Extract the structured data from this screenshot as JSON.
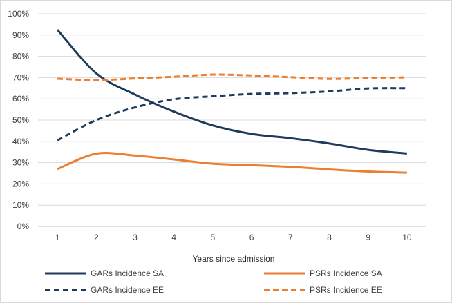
{
  "chart_data": {
    "type": "line",
    "title": "",
    "xlabel": "Years since admission",
    "ylabel": "",
    "x": [
      1,
      2,
      3,
      4,
      5,
      6,
      7,
      8,
      9,
      10
    ],
    "ylim": [
      0,
      100
    ],
    "ytick_values": [
      0,
      10,
      20,
      30,
      40,
      50,
      60,
      70,
      80,
      90,
      100
    ],
    "ytick_labels": [
      "0%",
      "10%",
      "20%",
      "30%",
      "40%",
      "50%",
      "60%",
      "70%",
      "80%",
      "90%",
      "100%"
    ],
    "xtick_labels": [
      "1",
      "2",
      "3",
      "4",
      "5",
      "6",
      "7",
      "8",
      "9",
      "10"
    ],
    "grid": "horizontal",
    "legend_position": "bottom",
    "series": [
      {
        "name": "GARs Incidence SA",
        "color": "#1f3b5c",
        "style": "solid",
        "values": [
          92.5,
          72,
          62,
          54,
          47.5,
          43.5,
          41.5,
          39,
          36,
          34.3
        ]
      },
      {
        "name": "PSRs Incidence SA",
        "color": "#ed7d31",
        "style": "solid",
        "values": [
          27,
          34.2,
          33.3,
          31.5,
          29.5,
          28.8,
          28,
          26.8,
          25.8,
          25.3
        ]
      },
      {
        "name": "GARs Incidence EE",
        "color": "#1f3b5c",
        "style": "dashed",
        "values": [
          40.5,
          50,
          56,
          59.8,
          61.2,
          62.3,
          62.7,
          63.5,
          64.9,
          65
        ]
      },
      {
        "name": "PSRs Incidence EE",
        "color": "#ed7d31",
        "style": "dashed",
        "values": [
          69.5,
          68.8,
          69.6,
          70.4,
          71.4,
          71,
          70.2,
          69.4,
          69.8,
          70.1
        ]
      }
    ]
  }
}
